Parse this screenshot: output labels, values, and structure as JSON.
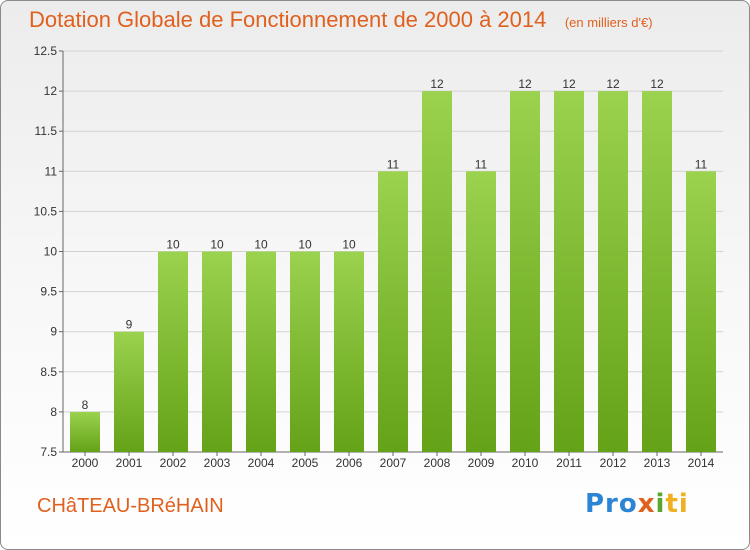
{
  "header": {
    "title": "Dotation Globale de Fonctionnement de 2000 à 2014",
    "subtitle": "(en milliers d'€)"
  },
  "footer": {
    "commune": "CHâTEAU-BRéHAIN",
    "logo": [
      "Pro",
      "x",
      "i",
      "ti"
    ]
  },
  "colors": {
    "bar_top": "#9bd24e",
    "bar_bottom": "#64a218",
    "title": "#e0601e"
  },
  "chart_data": {
    "type": "bar",
    "title": "Dotation Globale de Fonctionnement de 2000 à 2014",
    "subtitle": "(en milliers d'€)",
    "categories": [
      "2000",
      "2001",
      "2002",
      "2003",
      "2004",
      "2005",
      "2006",
      "2007",
      "2008",
      "2009",
      "2010",
      "2011",
      "2012",
      "2013",
      "2014"
    ],
    "values": [
      8,
      9,
      10,
      10,
      10,
      10,
      10,
      11,
      12,
      11,
      12,
      12,
      12,
      12,
      11
    ],
    "data_labels": [
      "8",
      "9",
      "10",
      "10",
      "10",
      "10",
      "10",
      "11",
      "12",
      "11",
      "12",
      "12",
      "12",
      "12",
      "11"
    ],
    "yticks": [
      "7.5",
      "8",
      "8.5",
      "9",
      "9.5",
      "10",
      "10.5",
      "11",
      "11.5",
      "12",
      "12.5"
    ],
    "ylim": [
      7.5,
      12.5
    ],
    "grid": true,
    "legend": "none"
  }
}
